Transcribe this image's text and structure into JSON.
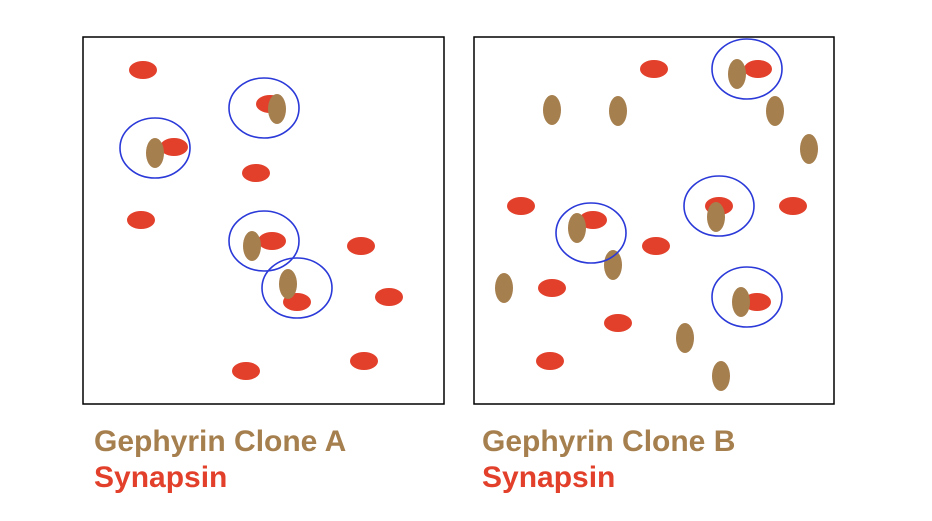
{
  "colors": {
    "gephyrin": "#A67F4E",
    "synapsin": "#E2402B",
    "circle": "#2A39D8",
    "frame": "#000000",
    "background": "#FFFFFF"
  },
  "panels": [
    {
      "name": "clone-a",
      "legend": {
        "gephyrin_label": "Gephyrin Clone A",
        "synapsin_label": "Synapsin"
      },
      "synapsin_dots": 13,
      "gephyrin_dots": 4,
      "colocalized_circles": 4
    },
    {
      "name": "clone-b",
      "legend": {
        "gephyrin_label": "Gephyrin Clone B",
        "synapsin_label": "Synapsin"
      },
      "synapsin_dots": 13,
      "gephyrin_dots": 13,
      "colocalized_circles": 4
    }
  ]
}
